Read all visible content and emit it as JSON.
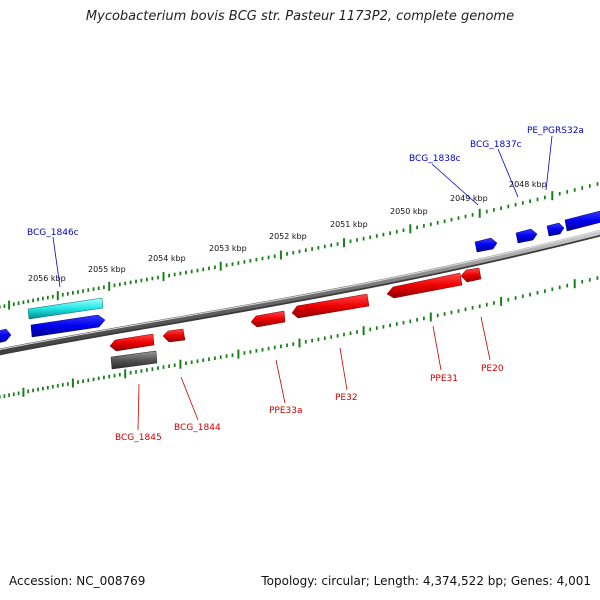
{
  "title": "Mycobacterium bovis BCG str. Pasteur 1173P2, complete genome",
  "footer": {
    "accession": "Accession: NC_008769",
    "topology": "Topology: circular; Length: 4,374,522 bp; Genes: 4,001"
  },
  "colors": {
    "forward_gene": "#0000ee",
    "reverse_gene": "#ee0000",
    "highlight_gene": "#00dddd",
    "other_gene": "#555555",
    "tick": "#1a7f1a",
    "backbone": "#7a7a7a",
    "forward_label": "#0000cc",
    "reverse_label": "#cc0000"
  },
  "kbp_labels": [
    "2056 kbp",
    "2055 kbp",
    "2054 kbp",
    "2053 kbp",
    "2052 kbp",
    "2051 kbp",
    "2050 kbp",
    "2049 kbp",
    "2048 kbp"
  ],
  "forward_labels": [
    "BCG_1846c",
    "BCG_1838c",
    "BCG_1837c",
    "PE_PGRS32a"
  ],
  "reverse_labels": [
    "BCG_1845",
    "BCG_1844",
    "PPE33a",
    "PE32",
    "PPE31",
    "PE20"
  ]
}
